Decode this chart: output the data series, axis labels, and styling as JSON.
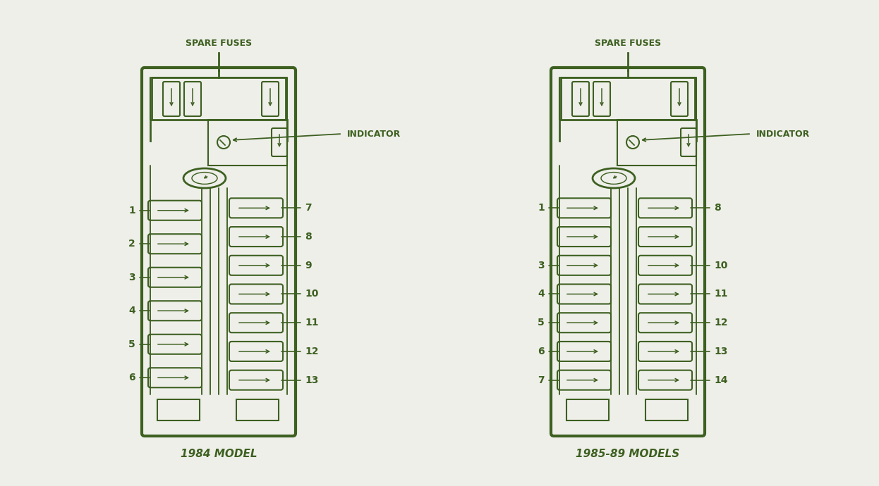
{
  "bg_color": "#efefea",
  "line_color": "#3d6020",
  "text_color": "#3d6020",
  "title1": "1984 MODEL",
  "title2": "1985-89 MODELS",
  "spare_fuses": "SPARE FUSES",
  "indicator": "INDICATOR",
  "left_labels_1984": [
    "1",
    "2",
    "3",
    "4",
    "5",
    "6"
  ],
  "right_labels_1984": [
    "7",
    "8",
    "9",
    "10",
    "11",
    "12",
    "13"
  ],
  "left_labels_1985": [
    "1",
    "",
    "3",
    "4",
    "5",
    "6",
    "7"
  ],
  "right_labels_1985": [
    "8",
    "",
    "10",
    "11",
    "12",
    "13",
    "14"
  ]
}
